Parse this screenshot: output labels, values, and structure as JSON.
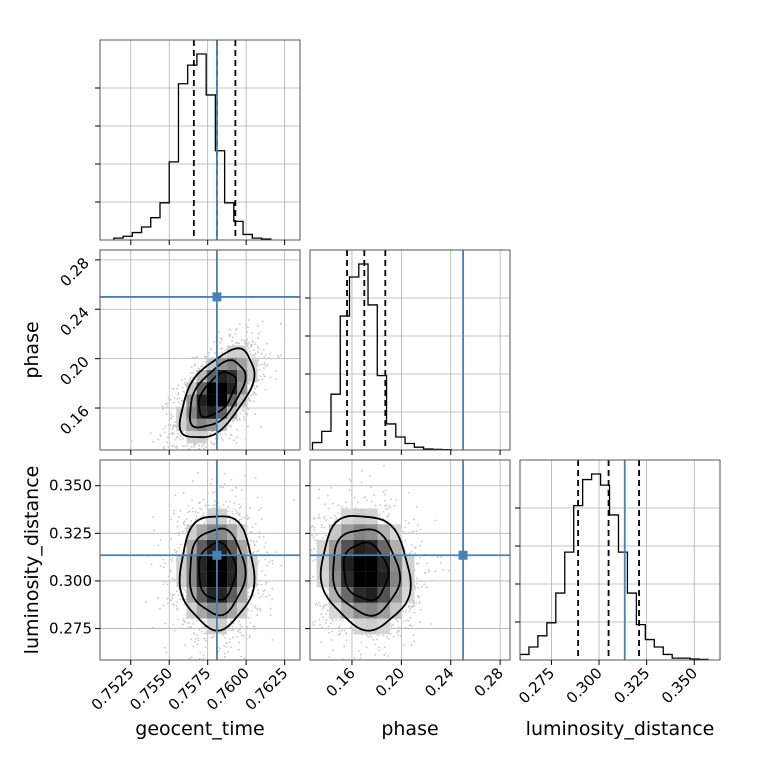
{
  "chart_data": {
    "type": "corner",
    "title": "",
    "parameters": [
      {
        "name": "geocent_time",
        "label": "geocent_time",
        "range": [
          0.7505,
          0.7635
        ],
        "ticks": [
          "0.7525",
          "0.7550",
          "0.7575",
          "0.7600",
          "0.7625"
        ],
        "quantiles": [
          0.7566,
          0.7581,
          0.7593
        ],
        "truth": 0.7581,
        "hist": {
          "start": 0.7514,
          "width": 0.0006,
          "counts": [
            0.01,
            0.02,
            0.04,
            0.07,
            0.12,
            0.2,
            0.42,
            0.84,
            0.94,
            1.0,
            0.78,
            0.48,
            0.2,
            0.1,
            0.03,
            0.01,
            0.005
          ]
        }
      },
      {
        "name": "phase",
        "label": "phase",
        "range": [
          0.126,
          0.288
        ],
        "ticks": [
          "0.16",
          "0.20",
          "0.24",
          "0.28"
        ],
        "quantiles": [
          0.156,
          0.17,
          0.187
        ],
        "truth": 0.25,
        "hist": {
          "start": 0.128,
          "width": 0.0075,
          "counts": [
            0.04,
            0.1,
            0.3,
            0.72,
            0.93,
            1.0,
            0.78,
            0.4,
            0.14,
            0.07,
            0.035,
            0.015,
            0.005,
            0.003,
            0.002
          ]
        }
      },
      {
        "name": "luminosity_distance",
        "label": "luminosity_distance",
        "range": [
          0.2585,
          0.3635
        ],
        "ticks": [
          "0.275",
          "0.300",
          "0.325",
          "0.350"
        ],
        "quantiles": [
          0.289,
          0.305,
          0.321
        ],
        "truth": 0.3135,
        "hist": {
          "start": 0.2585,
          "width": 0.0047,
          "counts": [
            0.03,
            0.07,
            0.13,
            0.2,
            0.36,
            0.58,
            0.83,
            0.97,
            1.0,
            0.94,
            0.78,
            0.58,
            0.36,
            0.19,
            0.11,
            0.07,
            0.03,
            0.01,
            0.01,
            0.005,
            0.003
          ]
        }
      }
    ],
    "two_d": [
      {
        "x": "geocent_time",
        "y": "phase",
        "mean": [
          0.7581,
          0.171
        ],
        "std": [
          0.0012,
          0.018
        ],
        "rho": 0.55,
        "yticks": [
          "0.16",
          "0.20",
          "0.24",
          "0.28"
        ]
      },
      {
        "x": "geocent_time",
        "y": "luminosity_distance",
        "mean": [
          0.7581,
          0.305
        ],
        "std": [
          0.0012,
          0.015
        ],
        "rho": 0.0,
        "yticks": [
          "0.275",
          "0.300",
          "0.325",
          "0.350"
        ]
      },
      {
        "x": "phase",
        "y": "luminosity_distance",
        "mean": [
          0.171,
          0.305
        ],
        "std": [
          0.018,
          0.015
        ],
        "rho": -0.1
      }
    ],
    "truth_color": "#4682b4",
    "grid": true
  }
}
